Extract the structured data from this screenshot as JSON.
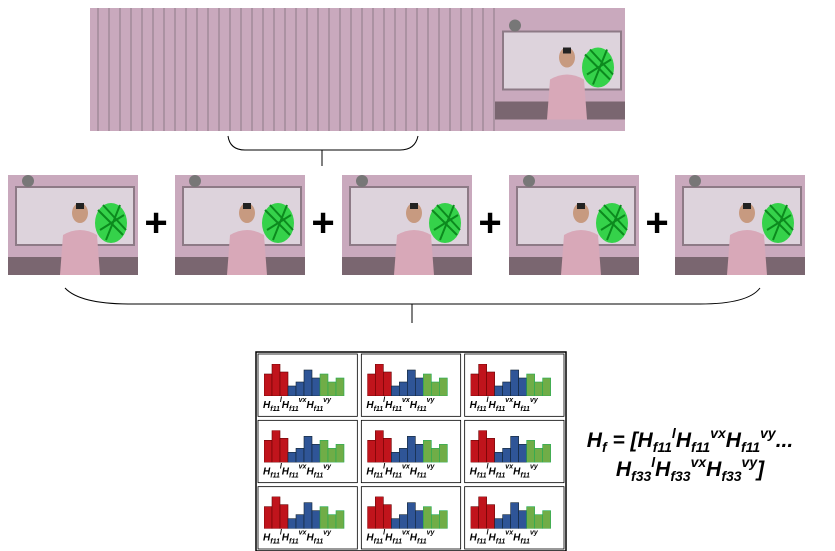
{
  "plus_signs": [
    "+",
    "+",
    "+",
    "+"
  ],
  "grid": {
    "cells": [
      [
        {
          "base": "H",
          "sub": "f11",
          "sup": "l"
        },
        {
          "base": "H",
          "sub": "f11",
          "sup": "vx"
        },
        {
          "base": "H",
          "sub": "f11",
          "sup": "vy"
        }
      ],
      [
        {
          "base": "H",
          "sub": "f11",
          "sup": "l"
        },
        {
          "base": "H",
          "sub": "f11",
          "sup": "vx"
        },
        {
          "base": "H",
          "sub": "f11",
          "sup": "vy"
        }
      ],
      [
        {
          "base": "H",
          "sub": "f11",
          "sup": "l"
        },
        {
          "base": "H",
          "sub": "f11",
          "sup": "vx"
        },
        {
          "base": "H",
          "sub": "f11",
          "sup": "vy"
        }
      ],
      [
        {
          "base": "H",
          "sub": "f11",
          "sup": "l"
        },
        {
          "base": "H",
          "sub": "f11",
          "sup": "vx"
        },
        {
          "base": "H",
          "sub": "f11",
          "sup": "vy"
        }
      ],
      [
        {
          "base": "H",
          "sub": "f11",
          "sup": "l"
        },
        {
          "base": "H",
          "sub": "f11",
          "sup": "vx"
        },
        {
          "base": "H",
          "sub": "f11",
          "sup": "vy"
        }
      ],
      [
        {
          "base": "H",
          "sub": "f11",
          "sup": "l"
        },
        {
          "base": "H",
          "sub": "f11",
          "sup": "vx"
        },
        {
          "base": "H",
          "sub": "f11",
          "sup": "vy"
        }
      ],
      [
        {
          "base": "H",
          "sub": "f11",
          "sup": "l"
        },
        {
          "base": "H",
          "sub": "f11",
          "sup": "vx"
        },
        {
          "base": "H",
          "sub": "f11",
          "sup": "vy"
        }
      ],
      [
        {
          "base": "H",
          "sub": "f11",
          "sup": "l"
        },
        {
          "base": "H",
          "sub": "f11",
          "sup": "vx"
        },
        {
          "base": "H",
          "sub": "f11",
          "sup": "vy"
        }
      ],
      [
        {
          "base": "H",
          "sub": "f11",
          "sup": "l"
        },
        {
          "base": "H",
          "sub": "f11",
          "sup": "vx"
        },
        {
          "base": "H",
          "sub": "f11",
          "sup": "vy"
        }
      ]
    ]
  },
  "formula": {
    "lines": [
      [
        {
          "base": "H",
          "sub": "f"
        },
        {
          "base": " = ["
        },
        {
          "base": "H",
          "sub": "f11",
          "sup": "l"
        },
        {
          "base": "H",
          "sub": "f11",
          "sup": "vx"
        },
        {
          "base": "H",
          "sub": "f11",
          "sup": "vy"
        },
        {
          "base": "..."
        }
      ],
      [
        {
          "base": "H",
          "sub": "f33",
          "sup": "l"
        },
        {
          "base": "H",
          "sub": "f33",
          "sup": "vx"
        },
        {
          "base": "H",
          "sub": "f33",
          "sup": "vy"
        },
        {
          "base": "]"
        }
      ]
    ]
  }
}
